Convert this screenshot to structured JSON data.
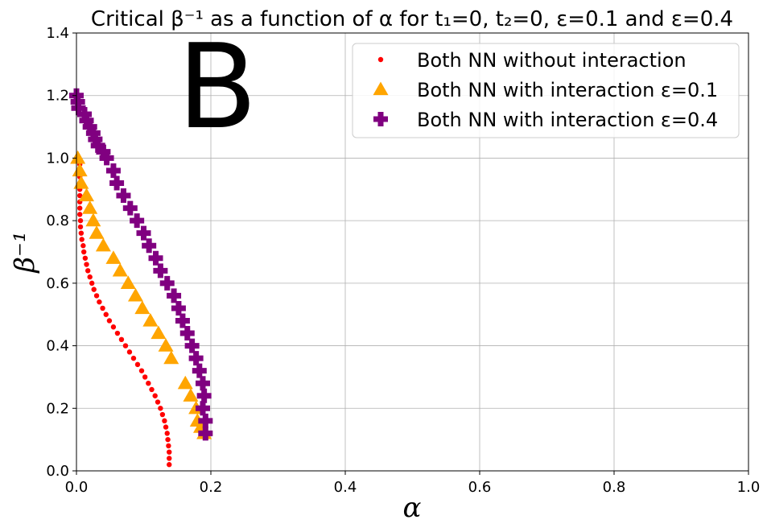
{
  "chart_data": {
    "type": "scatter",
    "title": "Critical β⁻¹ as a function of α for t₁=0, t₂=0, ε=0.1 and ε=0.4",
    "xlabel": "α",
    "ylabel": "β⁻¹",
    "panel_label": "B",
    "xlim": [
      0.0,
      1.0
    ],
    "ylim": [
      0.0,
      1.4
    ],
    "xticks": [
      "0.0",
      "0.2",
      "0.4",
      "0.6",
      "0.8",
      "1.0"
    ],
    "yticks": [
      "0.0",
      "0.2",
      "0.4",
      "0.6",
      "0.8",
      "1.0",
      "1.2",
      "1.4"
    ],
    "xtick_values": [
      0.0,
      0.2,
      0.4,
      0.6,
      0.8,
      1.0
    ],
    "ytick_values": [
      0.0,
      0.2,
      0.4,
      0.6,
      0.8,
      1.0,
      1.2,
      1.4
    ],
    "grid": true,
    "legend_position": "top-right",
    "series": [
      {
        "name": "Both NN without interaction",
        "marker": "dot",
        "color": "#ff0000",
        "points": [
          [
            0.138,
            0.02
          ],
          [
            0.138,
            0.04
          ],
          [
            0.138,
            0.06
          ],
          [
            0.137,
            0.08
          ],
          [
            0.136,
            0.1
          ],
          [
            0.135,
            0.12
          ],
          [
            0.133,
            0.14
          ],
          [
            0.131,
            0.16
          ],
          [
            0.128,
            0.18
          ],
          [
            0.125,
            0.2
          ],
          [
            0.121,
            0.22
          ],
          [
            0.117,
            0.24
          ],
          [
            0.112,
            0.26
          ],
          [
            0.107,
            0.28
          ],
          [
            0.102,
            0.3
          ],
          [
            0.097,
            0.32
          ],
          [
            0.091,
            0.34
          ],
          [
            0.085,
            0.36
          ],
          [
            0.079,
            0.38
          ],
          [
            0.073,
            0.4
          ],
          [
            0.067,
            0.42
          ],
          [
            0.061,
            0.44
          ],
          [
            0.055,
            0.46
          ],
          [
            0.049,
            0.48
          ],
          [
            0.044,
            0.5
          ],
          [
            0.039,
            0.52
          ],
          [
            0.034,
            0.54
          ],
          [
            0.03,
            0.56
          ],
          [
            0.026,
            0.58
          ],
          [
            0.023,
            0.6
          ],
          [
            0.02,
            0.62
          ],
          [
            0.017,
            0.64
          ],
          [
            0.015,
            0.66
          ],
          [
            0.013,
            0.68
          ],
          [
            0.011,
            0.7
          ],
          [
            0.01,
            0.72
          ],
          [
            0.008,
            0.74
          ],
          [
            0.007,
            0.76
          ],
          [
            0.006,
            0.78
          ],
          [
            0.006,
            0.8
          ],
          [
            0.005,
            0.82
          ],
          [
            0.005,
            0.84
          ],
          [
            0.005,
            0.86
          ],
          [
            0.005,
            0.88
          ],
          [
            0.005,
            0.9
          ],
          [
            0.005,
            0.92
          ],
          [
            0.005,
            0.94
          ],
          [
            0.005,
            0.96
          ],
          [
            0.005,
            0.98
          ],
          [
            0.004,
            0.99
          ]
        ]
      },
      {
        "name": "Both NN with interaction ε=0.1",
        "marker": "triangle",
        "color": "#ffa500",
        "points": [
          [
            0.002,
            1.0
          ],
          [
            0.005,
            0.96
          ],
          [
            0.007,
            0.92
          ],
          [
            0.015,
            0.88
          ],
          [
            0.02,
            0.84
          ],
          [
            0.025,
            0.8
          ],
          [
            0.03,
            0.76
          ],
          [
            0.04,
            0.72
          ],
          [
            0.055,
            0.68
          ],
          [
            0.065,
            0.64
          ],
          [
            0.077,
            0.6
          ],
          [
            0.088,
            0.56
          ],
          [
            0.098,
            0.52
          ],
          [
            0.11,
            0.48
          ],
          [
            0.122,
            0.44
          ],
          [
            0.133,
            0.4
          ],
          [
            0.141,
            0.36
          ],
          [
            0.162,
            0.28
          ],
          [
            0.17,
            0.24
          ],
          [
            0.178,
            0.2
          ],
          [
            0.18,
            0.16
          ],
          [
            0.185,
            0.14
          ],
          [
            0.19,
            0.12
          ]
        ]
      },
      {
        "name": "Both NN with interaction ε=0.4",
        "marker": "plus",
        "color": "#800080",
        "points": [
          [
            0.0,
            1.2
          ],
          [
            0.002,
            1.18
          ],
          [
            0.003,
            1.16
          ],
          [
            0.012,
            1.14
          ],
          [
            0.015,
            1.12
          ],
          [
            0.02,
            1.1
          ],
          [
            0.025,
            1.08
          ],
          [
            0.028,
            1.06
          ],
          [
            0.032,
            1.04
          ],
          [
            0.04,
            1.02
          ],
          [
            0.045,
            1.0
          ],
          [
            0.055,
            0.96
          ],
          [
            0.06,
            0.92
          ],
          [
            0.07,
            0.88
          ],
          [
            0.08,
            0.84
          ],
          [
            0.09,
            0.8
          ],
          [
            0.1,
            0.76
          ],
          [
            0.108,
            0.72
          ],
          [
            0.118,
            0.68
          ],
          [
            0.125,
            0.64
          ],
          [
            0.135,
            0.6
          ],
          [
            0.145,
            0.56
          ],
          [
            0.152,
            0.52
          ],
          [
            0.158,
            0.48
          ],
          [
            0.165,
            0.44
          ],
          [
            0.172,
            0.4
          ],
          [
            0.178,
            0.36
          ],
          [
            0.183,
            0.32
          ],
          [
            0.188,
            0.28
          ],
          [
            0.19,
            0.24
          ],
          [
            0.188,
            0.2
          ],
          [
            0.192,
            0.16
          ],
          [
            0.192,
            0.12
          ]
        ]
      }
    ]
  }
}
